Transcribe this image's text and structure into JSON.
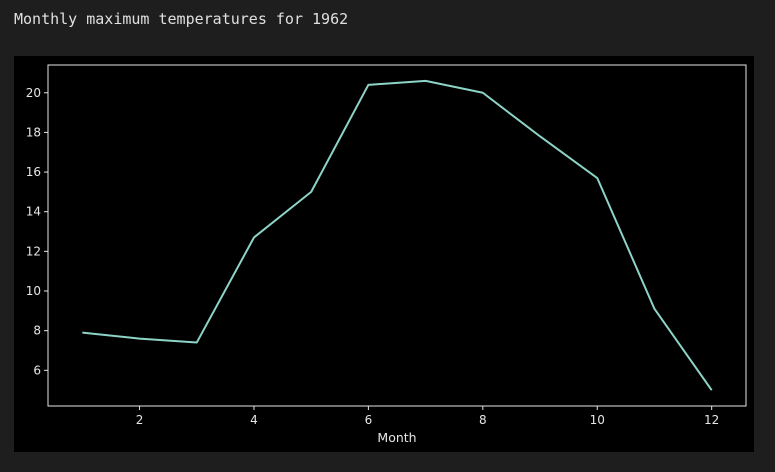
{
  "cell_output": {
    "title": "Monthly maximum temperatures for 1962"
  },
  "chart_data": {
    "type": "line",
    "xlabel": "Month",
    "ylabel": "",
    "x": [
      1,
      2,
      3,
      4,
      5,
      6,
      7,
      8,
      9,
      10,
      11,
      12
    ],
    "series": [
      {
        "values": [
          7.9,
          7.6,
          7.4,
          12.7,
          15.0,
          20.4,
          20.6,
          20.0,
          17.8,
          15.7,
          9.1,
          5.0
        ]
      }
    ],
    "xlim": [
      0.4,
      12.6
    ],
    "ylim": [
      4.2,
      21.4
    ],
    "xticks": [
      2,
      4,
      6,
      8,
      10,
      12
    ],
    "yticks": [
      6,
      8,
      10,
      12,
      14,
      16,
      18,
      20
    ],
    "grid": false,
    "colors": {
      "line": "#8dd3c7",
      "background": "#000000",
      "axes": "#e6e6e6"
    }
  }
}
